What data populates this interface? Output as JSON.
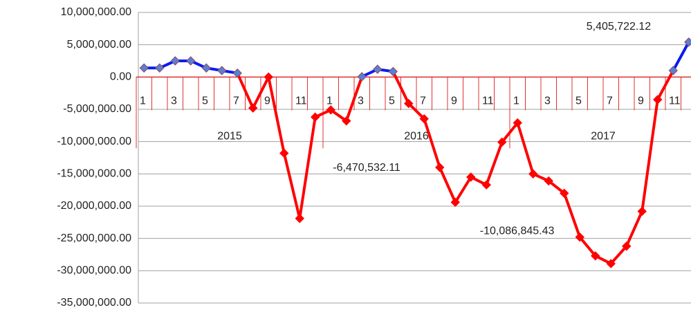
{
  "chart_data": {
    "type": "line",
    "categories": [
      "1",
      null,
      "3",
      null,
      "5",
      null,
      "7",
      null,
      "9",
      null,
      "11",
      null,
      "1",
      null,
      "3",
      null,
      "5",
      null,
      "7",
      null,
      "9",
      null,
      "11",
      null,
      "1",
      null,
      "3",
      null,
      "5",
      null,
      "7",
      null,
      "9",
      null,
      "11",
      null
    ],
    "category_groups": [
      "2015",
      "2016",
      "2017"
    ],
    "values": [
      1400000,
      1400000,
      2500000,
      2500000,
      1400000,
      1000000,
      600000,
      -4800000,
      0,
      -11800000,
      -21900000,
      -6200000,
      -5100000,
      -6800000,
      50000,
      1200000,
      850000,
      -4100000,
      -6470532.11,
      -14000000,
      -19400000,
      -15500000,
      -16700000,
      -10086845.43,
      -7100000,
      -15000000,
      -16100000,
      -18000000,
      -24800000,
      -27700000,
      -28900000,
      -26200000,
      -20800000,
      -3500000,
      1000000,
      5405722.12
    ],
    "value_labels": [
      null,
      null,
      null,
      null,
      null,
      null,
      null,
      null,
      null,
      null,
      null,
      null,
      null,
      null,
      null,
      null,
      null,
      null,
      "-6,470,532.11",
      null,
      null,
      null,
      null,
      "-10,086,845.43",
      null,
      null,
      null,
      null,
      null,
      null,
      null,
      null,
      null,
      null,
      null,
      "5,405,722.12"
    ],
    "color_positive": "#0a1cf0",
    "color_negative": "#ff0000",
    "marker_positive": "#5b7fd1",
    "axis_color": "#e03030",
    "ylim": [
      -35000000,
      10000000
    ],
    "yticks": [
      {
        "value": 10000000,
        "label": "10,000,000.00"
      },
      {
        "value": 5000000,
        "label": "5,000,000.00"
      },
      {
        "value": 0,
        "label": "0.00"
      },
      {
        "value": -5000000,
        "label": "-5,000,000.00"
      },
      {
        "value": -10000000,
        "label": "-10,000,000.00"
      },
      {
        "value": -15000000,
        "label": "-15,000,000.00"
      },
      {
        "value": -20000000,
        "label": "-20,000,000.00"
      },
      {
        "value": -25000000,
        "label": "-25,000,000.00"
      },
      {
        "value": -30000000,
        "label": "-30,000,000.00"
      },
      {
        "value": -35000000,
        "label": "-35,000,000.00"
      }
    ],
    "grid": true
  }
}
